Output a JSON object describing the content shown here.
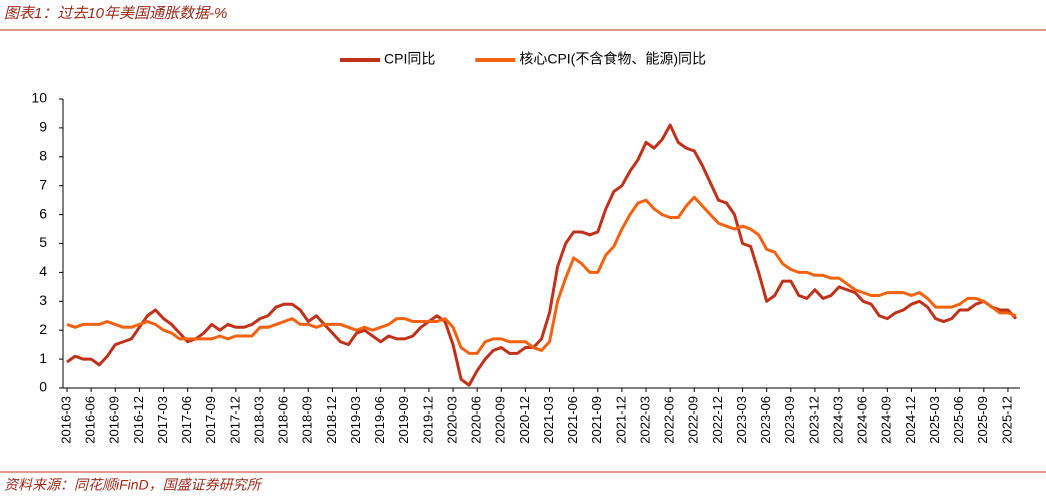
{
  "chart_data": {
    "type": "line",
    "title": "图表1：过去10年美国通胀数据-%",
    "source": "资料来源：同花顺iFinD，国盛证券研究所",
    "categories": [
      "2016-03",
      null,
      null,
      "2016-06",
      null,
      null,
      "2016-09",
      null,
      null,
      "2016-12",
      null,
      null,
      "2017-03",
      null,
      null,
      "2017-06",
      null,
      null,
      "2017-09",
      null,
      null,
      "2017-12",
      null,
      null,
      "2018-03",
      null,
      null,
      "2018-06",
      null,
      null,
      "2018-09",
      null,
      null,
      "2018-12",
      null,
      null,
      "2019-03",
      null,
      null,
      "2019-06",
      null,
      null,
      "2019-09",
      null,
      null,
      "2019-12",
      null,
      null,
      "2020-03",
      null,
      null,
      "2020-06",
      null,
      null,
      "2020-09",
      null,
      null,
      "2020-12",
      null,
      null,
      "2021-03",
      null,
      null,
      "2021-06",
      null,
      null,
      "2021-09",
      null,
      null,
      "2021-12",
      null,
      null,
      "2022-03",
      null,
      null,
      "2022-06",
      null,
      null,
      "2022-09",
      null,
      null,
      "2022-12",
      null,
      null,
      "2023-03",
      null,
      null,
      "2023-06",
      null,
      null,
      "2023-09",
      null,
      null,
      "2023-12",
      null,
      null,
      "2024-03",
      null,
      null,
      "2024-06",
      null,
      null,
      "2024-09",
      null,
      null,
      "2024-12",
      null,
      null,
      "2025-03",
      null,
      null,
      "2025-06",
      null,
      null,
      "2025-09",
      null,
      null,
      "2025-12",
      null
    ],
    "series": [
      {
        "name": "CPI同比",
        "color": "#c0311a",
        "values": [
          0.9,
          1.1,
          1.0,
          1.0,
          0.8,
          1.1,
          1.5,
          1.6,
          1.7,
          2.1,
          2.5,
          2.7,
          2.4,
          2.2,
          1.9,
          1.6,
          1.7,
          1.9,
          2.2,
          2.0,
          2.2,
          2.1,
          2.1,
          2.2,
          2.4,
          2.5,
          2.8,
          2.9,
          2.9,
          2.7,
          2.3,
          2.5,
          2.2,
          1.9,
          1.6,
          1.5,
          1.9,
          2.0,
          1.8,
          1.6,
          1.8,
          1.7,
          1.7,
          1.8,
          2.1,
          2.3,
          2.5,
          2.3,
          1.5,
          0.3,
          0.1,
          0.6,
          1.0,
          1.3,
          1.4,
          1.2,
          1.2,
          1.4,
          1.4,
          1.7,
          2.6,
          4.2,
          5.0,
          5.4,
          5.4,
          5.3,
          5.4,
          6.2,
          6.8,
          7.0,
          7.5,
          7.9,
          8.5,
          8.3,
          8.6,
          9.1,
          8.5,
          8.3,
          8.2,
          7.7,
          7.1,
          6.5,
          6.4,
          6.0,
          5.0,
          4.9,
          4.0,
          3.0,
          3.2,
          3.7,
          3.7,
          3.2,
          3.1,
          3.4,
          3.1,
          3.2,
          3.5,
          3.4,
          3.3,
          3.0,
          2.9,
          2.5,
          2.4,
          2.6,
          2.7,
          2.9,
          3.0,
          2.8,
          2.4,
          2.3,
          2.4,
          2.7,
          2.7,
          2.9,
          3.0,
          2.8,
          2.7,
          2.7,
          2.4
        ]
      },
      {
        "name": "核心CPI(不含食物、能源)同比",
        "color": "#f5620f",
        "values": [
          2.2,
          2.1,
          2.2,
          2.2,
          2.2,
          2.3,
          2.2,
          2.1,
          2.1,
          2.2,
          2.3,
          2.2,
          2.0,
          1.9,
          1.7,
          1.7,
          1.7,
          1.7,
          1.7,
          1.8,
          1.7,
          1.8,
          1.8,
          1.8,
          2.1,
          2.1,
          2.2,
          2.3,
          2.4,
          2.2,
          2.2,
          2.1,
          2.2,
          2.2,
          2.2,
          2.1,
          2.0,
          2.1,
          2.0,
          2.1,
          2.2,
          2.4,
          2.4,
          2.3,
          2.3,
          2.3,
          2.3,
          2.4,
          2.1,
          1.4,
          1.2,
          1.2,
          1.6,
          1.7,
          1.7,
          1.6,
          1.6,
          1.6,
          1.4,
          1.3,
          1.6,
          3.0,
          3.8,
          4.5,
          4.3,
          4.0,
          4.0,
          4.6,
          4.9,
          5.5,
          6.0,
          6.4,
          6.5,
          6.2,
          6.0,
          5.9,
          5.9,
          6.3,
          6.6,
          6.3,
          6.0,
          5.7,
          5.6,
          5.5,
          5.6,
          5.5,
          5.3,
          4.8,
          4.7,
          4.3,
          4.1,
          4.0,
          4.0,
          3.9,
          3.9,
          3.8,
          3.8,
          3.6,
          3.4,
          3.3,
          3.2,
          3.2,
          3.3,
          3.3,
          3.3,
          3.2,
          3.3,
          3.1,
          2.8,
          2.8,
          2.8,
          2.9,
          3.1,
          3.1,
          3.0,
          2.8,
          2.6,
          2.6,
          2.5
        ]
      }
    ],
    "ylim": [
      0,
      10
    ],
    "yticks": [
      0,
      1,
      2,
      3,
      4,
      5,
      6,
      7,
      8,
      9,
      10
    ],
    "grid": false,
    "legend": "top"
  }
}
